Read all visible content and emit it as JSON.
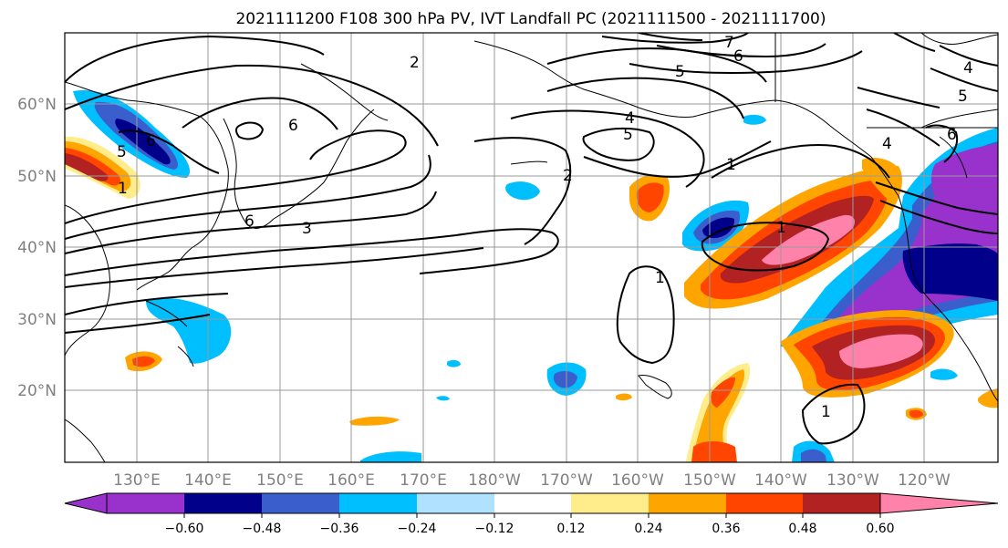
{
  "title": "2021111200 F108 300 hPa PV, IVT Landfall PC (2021111500 - 2021111700)",
  "map": {
    "lon_ticks": [
      "130°E",
      "140°E",
      "150°E",
      "160°E",
      "170°E",
      "180°W",
      "170°W",
      "160°W",
      "150°W",
      "140°W",
      "130°W",
      "120°W"
    ],
    "lat_ticks": [
      "60°N",
      "50°N",
      "40°N",
      "30°N",
      "20°N"
    ]
  },
  "colorbar": {
    "colors": [
      "#9932cc",
      "#00008b",
      "#3a5fcd",
      "#00bfff",
      "#b0e2ff",
      "#ffffff",
      "#ffec8b",
      "#ffa500",
      "#ff4500",
      "#b22222",
      "#ff82ab"
    ],
    "tick_labels": [
      "-0.60",
      "-0.48",
      "-0.36",
      "-0.24",
      "-0.12",
      "0.12",
      "0.24",
      "0.36",
      "0.48",
      "0.60"
    ]
  },
  "contour_labels": [
    "2",
    "6",
    "7",
    "6",
    "5",
    "4",
    "5",
    "4",
    "6",
    "6",
    "5",
    "5",
    "1",
    "2",
    "1",
    "1",
    "1",
    "3",
    "1",
    "4",
    "6"
  ]
}
